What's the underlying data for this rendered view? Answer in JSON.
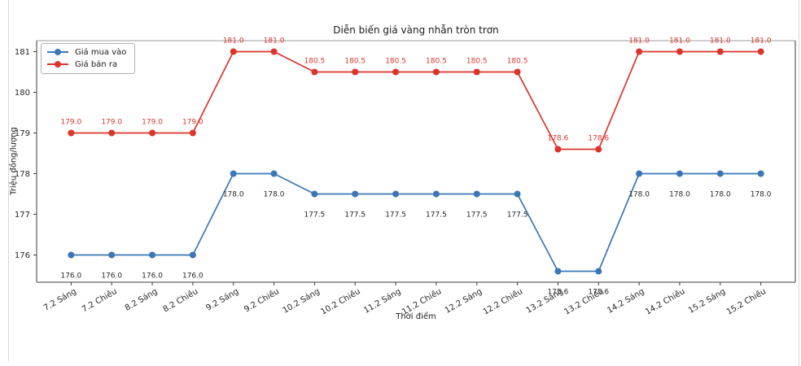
{
  "chart_data": {
    "type": "line",
    "title": "Diễn biến giá vàng nhẫn tròn trơn",
    "xlabel": "Thời điểm",
    "ylabel": "Triệu đồng/lượng",
    "categories": [
      "7.2 Sáng",
      "7.2 Chiều",
      "8.2 Sáng",
      "8.2 Chiều",
      "9.2 Sáng",
      "9.2 Chiều",
      "10.2 Sáng",
      "10.2 Chiều",
      "11.2 Sáng",
      "11.2 Chiều",
      "12.2 Sáng",
      "12.2 Chiều",
      "13.2 Sáng",
      "13.2 Chiều",
      "14.2 Sáng",
      "14.2 Chiều",
      "15.2 Sáng",
      "15.2 Chiều"
    ],
    "series": [
      {
        "name": "Giá mua vào",
        "color": "#3a77b4",
        "marker": "circle",
        "values": [
          176.0,
          176.0,
          176.0,
          176.0,
          178.0,
          178.0,
          177.5,
          177.5,
          177.5,
          177.5,
          177.5,
          177.5,
          175.6,
          175.6,
          178.0,
          178.0,
          178.0,
          178.0
        ],
        "value_labels": "below",
        "value_label_color": "#262626"
      },
      {
        "name": "Giá bán ra",
        "color": "#da352b",
        "marker": "circle",
        "values": [
          179.0,
          179.0,
          179.0,
          179.0,
          181.0,
          181.0,
          180.5,
          180.5,
          180.5,
          180.5,
          180.5,
          180.5,
          178.6,
          178.6,
          181.0,
          181.0,
          181.0,
          181.0
        ],
        "value_labels": "above",
        "value_label_color": "#da352b"
      }
    ],
    "yticks": [
      176,
      177,
      178,
      179,
      180,
      181
    ],
    "ylim": [
      175.33,
      181.27
    ],
    "grid": false,
    "legend_position": "upper left",
    "value_label_format": "0.1f"
  }
}
